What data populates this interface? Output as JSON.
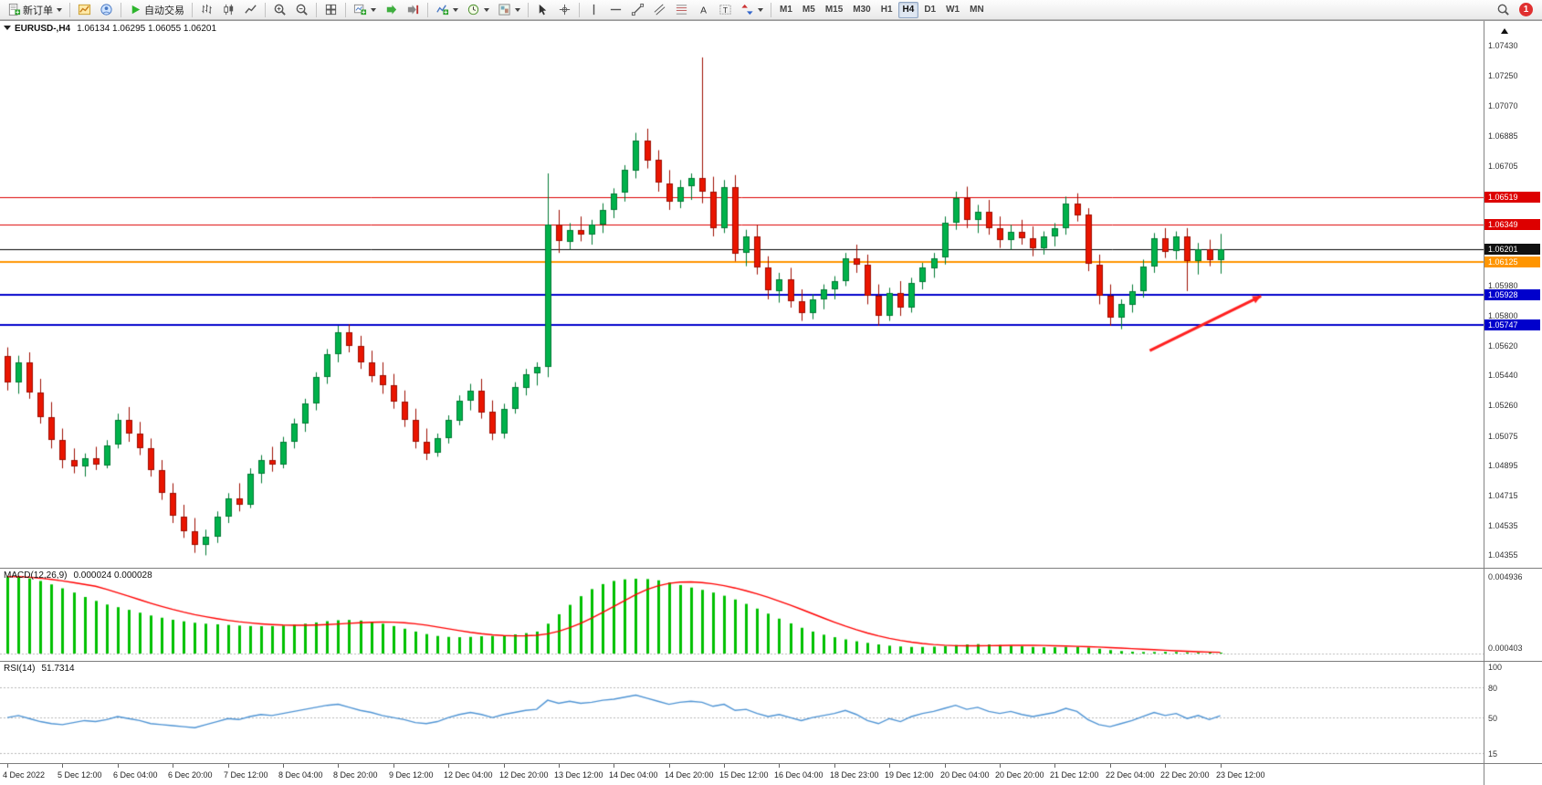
{
  "toolbar": {
    "groups": [
      [
        {
          "name": "new-order-button",
          "icon": "order",
          "label": "新订单",
          "caret": true
        }
      ],
      [
        {
          "name": "charts-button",
          "icon": "chartgold"
        },
        {
          "name": "profiles-button",
          "icon": "profile"
        }
      ],
      [
        {
          "name": "auto-trading-button",
          "icon": "play",
          "label": "自动交易"
        }
      ],
      [
        {
          "name": "bar-chart-button",
          "icon": "bars"
        },
        {
          "name": "candlestick-chart-button",
          "icon": "candles"
        },
        {
          "name": "line-chart-button",
          "icon": "linechart"
        }
      ],
      [
        {
          "name": "zoom-in-button",
          "icon": "zoomin"
        },
        {
          "name": "zoom-out-button",
          "icon": "zoomout"
        }
      ],
      [
        {
          "name": "tile-windows-button",
          "icon": "tile"
        }
      ],
      [
        {
          "name": "new-chart-button",
          "icon": "newchart",
          "caret": true
        },
        {
          "name": "auto-scroll-button",
          "icon": "autoscroll"
        },
        {
          "name": "chart-shift-button",
          "icon": "shift"
        }
      ],
      [
        {
          "name": "indicators-button",
          "icon": "indicators",
          "caret": true
        },
        {
          "name": "periods-button",
          "icon": "clock",
          "caret": true
        },
        {
          "name": "templates-button",
          "icon": "template",
          "caret": true
        }
      ],
      [
        {
          "name": "cursor-button",
          "icon": "cursor"
        },
        {
          "name": "crosshair-button",
          "icon": "crosshair"
        }
      ],
      [
        {
          "name": "vertical-line-button",
          "icon": "vline"
        },
        {
          "name": "horizontal-line-button",
          "icon": "hline"
        },
        {
          "name": "trendline-button",
          "icon": "trend"
        },
        {
          "name": "channel-button",
          "icon": "channel"
        },
        {
          "name": "fibonacci-button",
          "icon": "fibo"
        },
        {
          "name": "text-button",
          "icon": "textA"
        },
        {
          "name": "text-label-button",
          "icon": "textT"
        },
        {
          "name": "arrows-button",
          "icon": "arrows",
          "caret": true
        }
      ]
    ],
    "timeframes": [
      "M1",
      "M5",
      "M15",
      "M30",
      "H1",
      "H4",
      "D1",
      "W1",
      "MN"
    ],
    "active_timeframe": "H4",
    "right_buttons": [
      {
        "name": "search-button",
        "icon": "search"
      }
    ],
    "notification_count": "1"
  },
  "chart_header": {
    "symbol_period": "EURUSD-,H4",
    "ohlc": "1.06134 1.06295 1.06055 1.06201"
  },
  "chart_data": {
    "type": "candlestick",
    "symbol": "EURUSD-",
    "timeframe": "H4",
    "candle_area_frac": 0.825,
    "time_label_step": 5,
    "colors": {
      "up": "#00b24b",
      "up_border": "#007a33",
      "down": "#ea1500",
      "down_border": "#9e0e00",
      "macd_hist": "#00c000",
      "macd_signal": "#ff0000",
      "rsi_line": "#4f94d4",
      "level_dash": "#b8b8b8"
    },
    "price_axis": {
      "min": 1.0428,
      "max": 1.0758,
      "scale_labels": [
        "1.07430",
        "1.07250",
        "1.07070",
        "1.06885",
        "1.06705",
        "1.05980",
        "1.05800",
        "1.05620",
        "1.05440",
        "1.05260",
        "1.05075",
        "1.04895",
        "1.04715",
        "1.04535",
        "1.04355"
      ],
      "badges": [
        {
          "value": "1.06519",
          "color": "#dd0000"
        },
        {
          "value": "1.06349",
          "color": "#dd0000"
        },
        {
          "value": "1.06201",
          "color": "#111111"
        },
        {
          "value": "1.06125",
          "color": "#ff9500"
        },
        {
          "value": "1.05928",
          "color": "#0000cc"
        },
        {
          "value": "1.05747",
          "color": "#0000cc"
        }
      ]
    },
    "hlines": [
      {
        "price": 1.06519,
        "color": "#dd0000",
        "width": 1
      },
      {
        "price": 1.06349,
        "color": "#dd0000",
        "width": 1
      },
      {
        "price": 1.06201,
        "color": "#000000",
        "width": 1
      },
      {
        "price": 1.06125,
        "color": "#ff9500",
        "width": 2
      },
      {
        "price": 1.05928,
        "color": "#0000cc",
        "width": 2
      },
      {
        "price": 1.05747,
        "color": "#0000cc",
        "width": 2
      }
    ],
    "annotations": [
      {
        "type": "arrow",
        "x1_frac": 0.775,
        "y1_price": 1.0559,
        "x2_frac": 0.85,
        "y2_price": 1.0592,
        "color": "#ff2020",
        "width": 3
      }
    ],
    "time_labels": [
      "4 Dec 2022",
      "5 Dec 12:00",
      "6 Dec 04:00",
      "6 Dec 20:00",
      "7 Dec 12:00",
      "8 Dec 04:00",
      "8 Dec 20:00",
      "9 Dec 12:00",
      "12 Dec 04:00",
      "12 Dec 20:00",
      "13 Dec 12:00",
      "14 Dec 04:00",
      "14 Dec 20:00",
      "15 Dec 12:00",
      "16 Dec 04:00",
      "18 Dec 23:00",
      "19 Dec 12:00",
      "20 Dec 04:00",
      "20 Dec 20:00",
      "21 Dec 12:00",
      "22 Dec 04:00",
      "22 Dec 20:00",
      "23 Dec 12:00"
    ],
    "candles": [
      [
        1.0556,
        1.0561,
        1.0535,
        1.054
      ],
      [
        1.054,
        1.0556,
        1.0533,
        1.0552
      ],
      [
        1.0552,
        1.0558,
        1.053,
        1.0534
      ],
      [
        1.0534,
        1.0542,
        1.0515,
        1.0519
      ],
      [
        1.0519,
        1.0528,
        1.05,
        1.0505
      ],
      [
        1.0505,
        1.0512,
        1.0488,
        1.0493
      ],
      [
        1.0493,
        1.05,
        1.0485,
        1.0489
      ],
      [
        1.0489,
        1.0497,
        1.0483,
        1.0494
      ],
      [
        1.0494,
        1.0501,
        1.0487,
        1.049
      ],
      [
        1.049,
        1.0505,
        1.0488,
        1.0502
      ],
      [
        1.0502,
        1.0521,
        1.05,
        1.0517
      ],
      [
        1.0517,
        1.0525,
        1.0504,
        1.0509
      ],
      [
        1.0509,
        1.0516,
        1.0496,
        1.05
      ],
      [
        1.05,
        1.0506,
        1.0483,
        1.0487
      ],
      [
        1.0487,
        1.0493,
        1.0469,
        1.0473
      ],
      [
        1.0473,
        1.0479,
        1.0455,
        1.0459
      ],
      [
        1.0459,
        1.0466,
        1.0446,
        1.045
      ],
      [
        1.045,
        1.0458,
        1.0437,
        1.0442
      ],
      [
        1.0442,
        1.0451,
        1.04355,
        1.0447
      ],
      [
        1.0447,
        1.0462,
        1.0443,
        1.0459
      ],
      [
        1.0459,
        1.0473,
        1.0455,
        1.047
      ],
      [
        1.047,
        1.0479,
        1.0462,
        1.0466
      ],
      [
        1.0466,
        1.0488,
        1.0464,
        1.0485
      ],
      [
        1.0485,
        1.0496,
        1.0479,
        1.0493
      ],
      [
        1.0493,
        1.0501,
        1.0486,
        1.049
      ],
      [
        1.049,
        1.0507,
        1.0488,
        1.0504
      ],
      [
        1.0504,
        1.0518,
        1.05,
        1.0515
      ],
      [
        1.0515,
        1.053,
        1.051,
        1.0527
      ],
      [
        1.0527,
        1.0546,
        1.0523,
        1.0543
      ],
      [
        1.0543,
        1.056,
        1.0539,
        1.0557
      ],
      [
        1.0557,
        1.0574,
        1.0552,
        1.057
      ],
      [
        1.057,
        1.0575,
        1.0558,
        1.0562
      ],
      [
        1.0562,
        1.0568,
        1.0548,
        1.0552
      ],
      [
        1.0552,
        1.0559,
        1.054,
        1.0544
      ],
      [
        1.0544,
        1.0552,
        1.0533,
        1.0538
      ],
      [
        1.0538,
        1.0545,
        1.0524,
        1.0528
      ],
      [
        1.0528,
        1.0535,
        1.0513,
        1.0517
      ],
      [
        1.0517,
        1.0524,
        1.05,
        1.0504
      ],
      [
        1.0504,
        1.0512,
        1.0493,
        1.0497
      ],
      [
        1.0497,
        1.0509,
        1.0495,
        1.0506
      ],
      [
        1.0506,
        1.052,
        1.0503,
        1.0517
      ],
      [
        1.0517,
        1.0532,
        1.0514,
        1.0529
      ],
      [
        1.0529,
        1.0539,
        1.0523,
        1.0535
      ],
      [
        1.0535,
        1.0542,
        1.0518,
        1.0522
      ],
      [
        1.0522,
        1.0529,
        1.0505,
        1.0509
      ],
      [
        1.0509,
        1.0527,
        1.0506,
        1.0524
      ],
      [
        1.0524,
        1.054,
        1.0521,
        1.0537
      ],
      [
        1.0537,
        1.0548,
        1.0532,
        1.0545
      ],
      [
        1.0545,
        1.0552,
        1.0538,
        1.0549
      ],
      [
        1.0549,
        1.0666,
        1.0543,
        1.0635
      ],
      [
        1.0635,
        1.0644,
        1.0618,
        1.0625
      ],
      [
        1.0625,
        1.0636,
        1.062,
        1.0632
      ],
      [
        1.0632,
        1.064,
        1.0625,
        1.0629
      ],
      [
        1.0629,
        1.0638,
        1.0623,
        1.0635
      ],
      [
        1.0635,
        1.0648,
        1.063,
        1.0644
      ],
      [
        1.0644,
        1.0657,
        1.0639,
        1.0654
      ],
      [
        1.0654,
        1.0671,
        1.0649,
        1.0668
      ],
      [
        1.0668,
        1.06905,
        1.0663,
        1.0686
      ],
      [
        1.0686,
        1.0693,
        1.0669,
        1.0674
      ],
      [
        1.0674,
        1.068,
        1.0655,
        1.066
      ],
      [
        1.066,
        1.0668,
        1.0644,
        1.0649
      ],
      [
        1.0649,
        1.0662,
        1.0645,
        1.0658
      ],
      [
        1.0658,
        1.0666,
        1.065,
        1.0663
      ],
      [
        1.0663,
        1.0736,
        1.0648,
        1.0655
      ],
      [
        1.0655,
        1.0664,
        1.0628,
        1.0633
      ],
      [
        1.0633,
        1.0662,
        1.063,
        1.0658
      ],
      [
        1.0658,
        1.0665,
        1.0613,
        1.0618
      ],
      [
        1.0618,
        1.0632,
        1.061,
        1.0628
      ],
      [
        1.0628,
        1.0635,
        1.0605,
        1.0609
      ],
      [
        1.0609,
        1.0616,
        1.059,
        1.0595
      ],
      [
        1.0595,
        1.0606,
        1.0588,
        1.0602
      ],
      [
        1.0602,
        1.0609,
        1.0585,
        1.0589
      ],
      [
        1.0589,
        1.0596,
        1.0577,
        1.0582
      ],
      [
        1.0582,
        1.0593,
        1.0578,
        1.059
      ],
      [
        1.059,
        1.0599,
        1.0584,
        1.0596
      ],
      [
        1.0596,
        1.0604,
        1.059,
        1.0601
      ],
      [
        1.0601,
        1.0618,
        1.0598,
        1.0615
      ],
      [
        1.0615,
        1.0623,
        1.0606,
        1.0611
      ],
      [
        1.0611,
        1.0617,
        1.0587,
        1.0592
      ],
      [
        1.0592,
        1.0599,
        1.0574,
        1.058
      ],
      [
        1.058,
        1.0597,
        1.0577,
        1.0594
      ],
      [
        1.0594,
        1.0601,
        1.058,
        1.0585
      ],
      [
        1.0585,
        1.0603,
        1.0582,
        1.06
      ],
      [
        1.06,
        1.0612,
        1.0596,
        1.0609
      ],
      [
        1.0609,
        1.0618,
        1.0603,
        1.0615
      ],
      [
        1.0615,
        1.064,
        1.0611,
        1.0636
      ],
      [
        1.0636,
        1.0655,
        1.0632,
        1.0651
      ],
      [
        1.0651,
        1.0658,
        1.0633,
        1.0638
      ],
      [
        1.0638,
        1.0647,
        1.063,
        1.0643
      ],
      [
        1.0643,
        1.065,
        1.0629,
        1.0633
      ],
      [
        1.0633,
        1.064,
        1.0621,
        1.0626
      ],
      [
        1.0626,
        1.0635,
        1.062,
        1.0631
      ],
      [
        1.0631,
        1.0638,
        1.0623,
        1.0627
      ],
      [
        1.0627,
        1.0634,
        1.0616,
        1.0621
      ],
      [
        1.0621,
        1.0631,
        1.0617,
        1.0628
      ],
      [
        1.0628,
        1.0636,
        1.0622,
        1.0633
      ],
      [
        1.0633,
        1.0652,
        1.0629,
        1.0648
      ],
      [
        1.0648,
        1.0654,
        1.0637,
        1.0641
      ],
      [
        1.0641,
        1.0645,
        1.0607,
        1.0611
      ],
      [
        1.0611,
        1.0617,
        1.0587,
        1.0592
      ],
      [
        1.0592,
        1.0599,
        1.0574,
        1.0579
      ],
      [
        1.0579,
        1.059,
        1.0572,
        1.0587
      ],
      [
        1.0587,
        1.0599,
        1.0582,
        1.0595
      ],
      [
        1.0595,
        1.0614,
        1.0591,
        1.061
      ],
      [
        1.061,
        1.063,
        1.0606,
        1.0627
      ],
      [
        1.0627,
        1.0633,
        1.0615,
        1.0619
      ],
      [
        1.0619,
        1.0631,
        1.0614,
        1.0628
      ],
      [
        1.0628,
        1.0633,
        1.0595,
        1.0613
      ],
      [
        1.0613,
        1.0624,
        1.0605,
        1.062
      ],
      [
        1.062,
        1.0626,
        1.061,
        1.06134
      ],
      [
        1.06134,
        1.06295,
        1.06055,
        1.06201
      ]
    ],
    "indicators": [
      {
        "type": "macd",
        "label": "MACD(12,26,9)",
        "values_label": "0.000024 0.000028",
        "axis_top": "0.004936",
        "axis_bottom": "0.000403",
        "max": 0.004936,
        "histogram": [
          0.0049,
          0.00488,
          0.00478,
          0.00462,
          0.0044,
          0.00415,
          0.00388,
          0.0036,
          0.00335,
          0.00312,
          0.00295,
          0.00278,
          0.0026,
          0.00242,
          0.00228,
          0.00215,
          0.00205,
          0.00196,
          0.0019,
          0.00186,
          0.00182,
          0.00178,
          0.00175,
          0.00174,
          0.00175,
          0.00178,
          0.00183,
          0.0019,
          0.00198,
          0.00206,
          0.00212,
          0.00214,
          0.0021,
          0.00202,
          0.0019,
          0.00175,
          0.00158,
          0.0014,
          0.00124,
          0.00112,
          0.00106,
          0.00104,
          0.00106,
          0.0011,
          0.00112,
          0.00116,
          0.00122,
          0.0013,
          0.0014,
          0.0019,
          0.0025,
          0.0031,
          0.00365,
          0.0041,
          0.00442,
          0.00462,
          0.00472,
          0.00476,
          0.00474,
          0.00466,
          0.00452,
          0.00436,
          0.0042,
          0.00405,
          0.00388,
          0.00368,
          0.00344,
          0.00316,
          0.00286,
          0.00254,
          0.00222,
          0.00192,
          0.00164,
          0.0014,
          0.0012,
          0.00104,
          0.0009,
          0.00078,
          0.00068,
          0.00058,
          0.0005,
          0.00045,
          0.00042,
          0.00042,
          0.00044,
          0.00048,
          0.00054,
          0.00058,
          0.0006,
          0.00058,
          0.00054,
          0.0005,
          0.00046,
          0.00042,
          0.0004,
          0.0004,
          0.00042,
          0.00042,
          0.00038,
          0.0003,
          0.00022,
          0.00016,
          0.00012,
          0.0001,
          0.0001,
          0.00011,
          0.0001,
          8e-05,
          5e-05,
          3e-05,
          2.4e-05
        ]
      },
      {
        "type": "rsi",
        "label": "RSI(14)",
        "value_label": "51.7314",
        "axis_labels": [
          "100",
          "80",
          "50",
          "15"
        ],
        "levels": [
          80,
          50,
          15
        ],
        "min": 8,
        "max": 102,
        "values": [
          50,
          52,
          49,
          46,
          44,
          43,
          45,
          47,
          46,
          48,
          51,
          49,
          47,
          44,
          43,
          42,
          41,
          40,
          43,
          46,
          49,
          48,
          51,
          53,
          52,
          54,
          56,
          58,
          60,
          62,
          63,
          60,
          57,
          55,
          52,
          50,
          48,
          45,
          44,
          46,
          50,
          53,
          55,
          53,
          50,
          53,
          55,
          57,
          58,
          67,
          64,
          66,
          64,
          65,
          67,
          68,
          70,
          72,
          69,
          66,
          63,
          65,
          66,
          65,
          61,
          63,
          57,
          58,
          54,
          51,
          53,
          50,
          47,
          50,
          52,
          54,
          57,
          53,
          47,
          44,
          49,
          46,
          51,
          54,
          56,
          59,
          62,
          58,
          60,
          56,
          54,
          56,
          53,
          51,
          53,
          55,
          59,
          56,
          48,
          43,
          41,
          44,
          47,
          51,
          55,
          52,
          54,
          49,
          52,
          48,
          51.73
        ]
      }
    ]
  }
}
